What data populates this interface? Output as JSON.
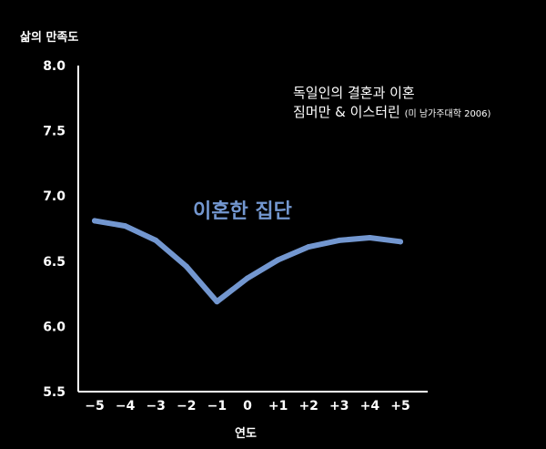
{
  "chart_data": {
    "type": "line",
    "ylabel": "삶의 만족도",
    "xlabel": "연도",
    "ylim": [
      5.5,
      8.0
    ],
    "yticks": [
      "5.5",
      "6.0",
      "6.5",
      "7.0",
      "7.5",
      "8.0"
    ],
    "categories": [
      "−5",
      "−4",
      "−3",
      "−2",
      "−1",
      "0",
      "+1",
      "+2",
      "+3",
      "+4",
      "+5"
    ],
    "series": [
      {
        "name": "이혼한 집단",
        "values": [
          6.81,
          6.77,
          6.66,
          6.46,
          6.19,
          6.37,
          6.51,
          6.61,
          6.66,
          6.68,
          6.65
        ],
        "color": "#7397d0"
      }
    ],
    "annotation": {
      "line1": "독일인의 결혼과 이혼",
      "line2": "짐머만 & 이스터린",
      "line2_small": "(미 남가주대학 2006)"
    },
    "grid": false
  }
}
